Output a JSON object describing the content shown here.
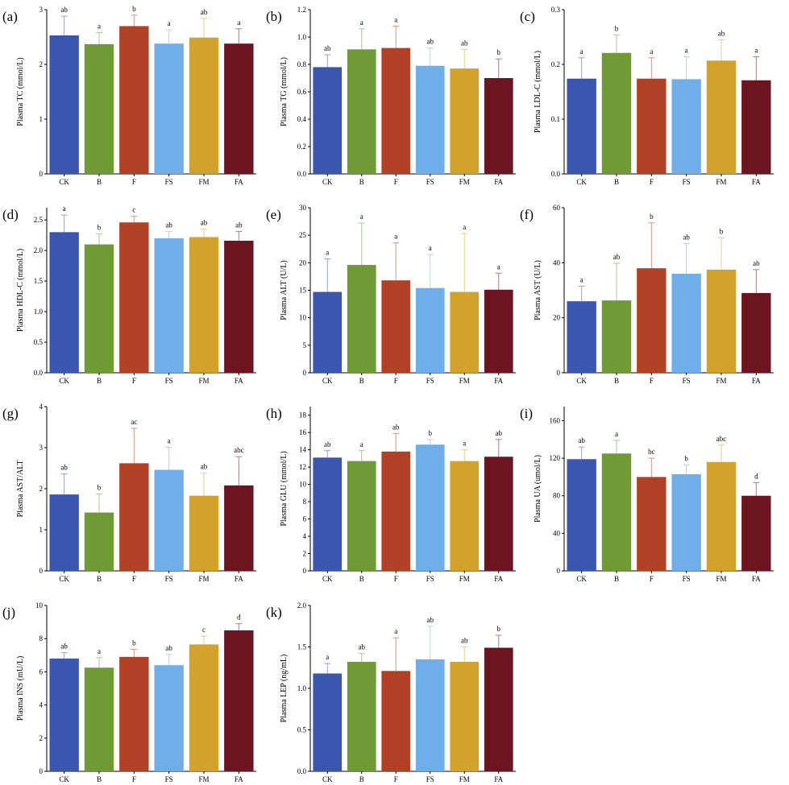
{
  "colors": {
    "CK": "#3a56ae",
    "B": "#6f9a35",
    "F": "#b04124",
    "FS": "#70aee9",
    "FM": "#d3a22a",
    "FA": "#6c1520"
  },
  "chart_data": [
    {
      "panel": "(a)",
      "type": "bar",
      "ylabel": "Plasma TC (mmol/L)",
      "ylim": [
        0,
        3
      ],
      "ticks": [
        0,
        1,
        2,
        3
      ],
      "categories": [
        "CK",
        "B",
        "F",
        "FS",
        "FM",
        "FA"
      ],
      "values": [
        2.53,
        2.37,
        2.7,
        2.38,
        2.49,
        2.38
      ],
      "errors": [
        0.35,
        0.21,
        0.2,
        0.25,
        0.35,
        0.27
      ],
      "letters": [
        "ab",
        "a",
        "b",
        "a",
        "ab",
        "a"
      ]
    },
    {
      "panel": "(b)",
      "type": "bar",
      "ylabel": "Plasma TG (mmol/L)",
      "ylim": [
        0,
        1.2
      ],
      "ticks": [
        "0.0",
        "0.2",
        "0.4",
        "0.6",
        "0.8",
        "1.0",
        "1.2"
      ],
      "categories": [
        "CK",
        "B",
        "F",
        "FS",
        "FM",
        "FA"
      ],
      "values": [
        0.78,
        0.91,
        0.92,
        0.79,
        0.77,
        0.7
      ],
      "errors": [
        0.09,
        0.15,
        0.16,
        0.13,
        0.14,
        0.14
      ],
      "letters": [
        "ab",
        "a",
        "a",
        "ab",
        "ab",
        "b"
      ]
    },
    {
      "panel": "(c)",
      "type": "bar",
      "ylabel": "Plasma LDL-C (mmol/L)",
      "ylim": [
        0,
        0.3
      ],
      "ticks": [
        "0.0",
        "0.1",
        "0.2",
        "0.3"
      ],
      "categories": [
        "CK",
        "B",
        "F",
        "FS",
        "FM",
        "FA"
      ],
      "values": [
        0.174,
        0.221,
        0.174,
        0.173,
        0.207,
        0.171
      ],
      "errors": [
        0.038,
        0.033,
        0.038,
        0.041,
        0.038,
        0.043
      ],
      "letters": [
        "a",
        "b",
        "a",
        "a",
        "ab",
        "a"
      ]
    },
    {
      "panel": "(d)",
      "type": "bar",
      "ylabel": "Plasma HDL-C (mmol/L)",
      "ylim": [
        0,
        2.7
      ],
      "ticks": [
        "0.0",
        "0.5",
        "1.0",
        "1.5",
        "2.0",
        "2.5"
      ],
      "categories": [
        "CK",
        "B",
        "F",
        "FS",
        "FM",
        "FA"
      ],
      "values": [
        2.3,
        2.1,
        2.46,
        2.2,
        2.22,
        2.16
      ],
      "errors": [
        0.28,
        0.17,
        0.1,
        0.11,
        0.13,
        0.15
      ],
      "letters": [
        "a",
        "b",
        "c",
        "ab",
        "ab",
        "ab"
      ]
    },
    {
      "panel": "(e)",
      "type": "bar",
      "ylabel": "Plasma ALT (U/L)",
      "ylim": [
        0,
        30
      ],
      "ticks": [
        0,
        5,
        10,
        15,
        20,
        25,
        30
      ],
      "categories": [
        "CK",
        "B",
        "F",
        "FS",
        "FM",
        "FA"
      ],
      "values": [
        14.7,
        19.6,
        16.8,
        15.4,
        14.7,
        15.1
      ],
      "errors": [
        6.0,
        7.6,
        6.8,
        6.1,
        10.6,
        3.0
      ],
      "letters": [
        "a",
        "a",
        "a",
        "a",
        "a",
        "a"
      ]
    },
    {
      "panel": "(f)",
      "type": "bar",
      "ylabel": "Plasma AST (U/L)",
      "ylim": [
        0,
        60
      ],
      "ticks": [
        0,
        20,
        40,
        60
      ],
      "categories": [
        "CK",
        "B",
        "F",
        "FS",
        "FM",
        "FA"
      ],
      "values": [
        26,
        26.3,
        38,
        36,
        37.5,
        29
      ],
      "errors": [
        5.5,
        13.5,
        16.5,
        11,
        11.5,
        8.5
      ],
      "letters": [
        "a",
        "ab",
        "b",
        "ab",
        "b",
        "ab"
      ]
    },
    {
      "panel": "(g)",
      "type": "bar",
      "ylabel": "Plasma AST/ALT",
      "ylim": [
        0,
        4
      ],
      "ticks": [
        0,
        1,
        2,
        3,
        4
      ],
      "categories": [
        "CK",
        "B",
        "F",
        "FS",
        "FM",
        "FA"
      ],
      "values": [
        1.86,
        1.42,
        2.62,
        2.46,
        1.83,
        2.08
      ],
      "errors": [
        0.5,
        0.45,
        0.85,
        0.55,
        0.55,
        0.7
      ],
      "letters": [
        "ab",
        "b",
        "ac",
        "a",
        "ab",
        "abc"
      ]
    },
    {
      "panel": "(h)",
      "type": "bar",
      "ylabel": "Plasma GLU (mmol/L)",
      "ylim": [
        0,
        19
      ],
      "ticks": [
        0,
        2,
        4,
        6,
        8,
        10,
        12,
        14,
        16,
        18
      ],
      "categories": [
        "CK",
        "B",
        "F",
        "FS",
        "FM",
        "FA"
      ],
      "values": [
        13.1,
        12.7,
        13.8,
        14.6,
        12.7,
        13.2
      ],
      "errors": [
        0.8,
        1.2,
        2.1,
        0.6,
        1.3,
        2.0
      ],
      "letters": [
        "ab",
        "a",
        "ab",
        "b",
        "a",
        "ab"
      ]
    },
    {
      "panel": "(i)",
      "type": "bar",
      "ylabel": "Plasma UA (umol/L)",
      "ylim": [
        0,
        175
      ],
      "ticks": [
        0,
        40,
        80,
        120,
        160
      ],
      "categories": [
        "CK",
        "B",
        "F",
        "FS",
        "FM",
        "FA"
      ],
      "values": [
        119,
        125,
        100,
        103,
        116,
        80
      ],
      "errors": [
        13,
        14,
        20,
        10,
        18,
        14
      ],
      "letters": [
        "ab",
        "a",
        "bc",
        "b",
        "abc",
        "d"
      ]
    },
    {
      "panel": "(j)",
      "type": "bar",
      "ylabel": "Plasma INS (mU/L)",
      "ylim": [
        0,
        10
      ],
      "ticks": [
        0,
        2,
        4,
        6,
        8,
        10
      ],
      "categories": [
        "CK",
        "B",
        "F",
        "FS",
        "FM",
        "FA"
      ],
      "values": [
        6.8,
        6.25,
        6.9,
        6.4,
        7.65,
        8.5
      ],
      "errors": [
        0.35,
        0.6,
        0.45,
        0.65,
        0.5,
        0.4
      ],
      "letters": [
        "ab",
        "a",
        "b",
        "ab",
        "c",
        "d"
      ]
    },
    {
      "panel": "(k)",
      "type": "bar",
      "ylabel": "Plasma LEP (ng/mL)",
      "ylim": [
        0,
        2
      ],
      "ticks": [
        "0.0",
        "0.5",
        "1.0",
        "1.5",
        "2.0"
      ],
      "categories": [
        "CK",
        "B",
        "F",
        "FS",
        "FM",
        "FA"
      ],
      "values": [
        1.18,
        1.32,
        1.21,
        1.35,
        1.32,
        1.49
      ],
      "errors": [
        0.12,
        0.1,
        0.4,
        0.4,
        0.18,
        0.15
      ],
      "letters": [
        "a",
        "ab",
        "a",
        "ab",
        "ab",
        "b"
      ]
    }
  ]
}
